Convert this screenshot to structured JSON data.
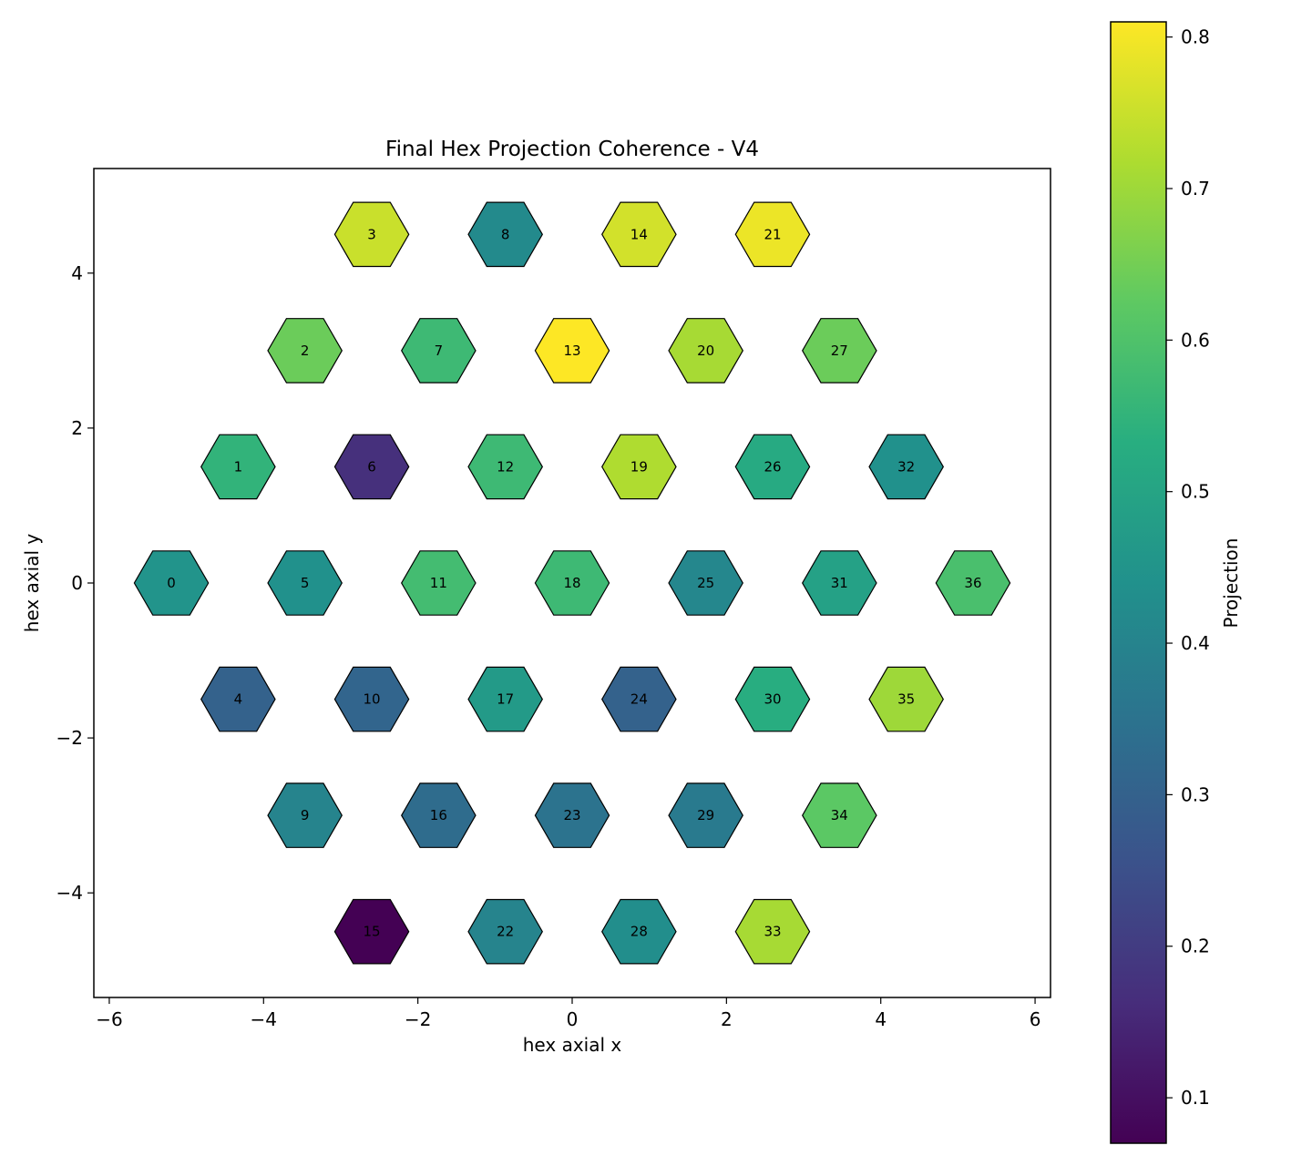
{
  "chart_data": {
    "type": "hexbin",
    "title": "Final Hex Projection Coherence - V4",
    "xlabel": "hex axial x",
    "ylabel": "hex axial y",
    "xlim": [
      -6.2,
      6.2
    ],
    "ylim": [
      -5.35,
      5.35
    ],
    "xticks": [
      -6,
      -4,
      -2,
      0,
      2,
      4,
      6
    ],
    "yticks": [
      -4,
      -2,
      0,
      2,
      4
    ],
    "colorbar": {
      "label": "Projection",
      "colormap": "viridis",
      "range": [
        0.07,
        0.81
      ],
      "ticks": [
        0.1,
        0.2,
        0.3,
        0.4,
        0.5,
        0.6,
        0.7,
        0.8
      ]
    },
    "cells": [
      {
        "id": 0,
        "x": -5.196,
        "y": 0.0,
        "value": 0.45
      },
      {
        "id": 1,
        "x": -4.33,
        "y": 1.5,
        "value": 0.55
      },
      {
        "id": 2,
        "x": -3.464,
        "y": 3.0,
        "value": 0.64
      },
      {
        "id": 3,
        "x": -2.598,
        "y": 4.5,
        "value": 0.75
      },
      {
        "id": 4,
        "x": -4.33,
        "y": -1.5,
        "value": 0.3
      },
      {
        "id": 5,
        "x": -3.464,
        "y": 0.0,
        "value": 0.44
      },
      {
        "id": 6,
        "x": -2.598,
        "y": 1.5,
        "value": 0.17
      },
      {
        "id": 7,
        "x": -1.732,
        "y": 3.0,
        "value": 0.57
      },
      {
        "id": 8,
        "x": -0.866,
        "y": 4.5,
        "value": 0.42
      },
      {
        "id": 9,
        "x": -3.464,
        "y": -3.0,
        "value": 0.4
      },
      {
        "id": 10,
        "x": -2.598,
        "y": -1.5,
        "value": 0.31
      },
      {
        "id": 11,
        "x": -1.732,
        "y": 0.0,
        "value": 0.58
      },
      {
        "id": 12,
        "x": -0.866,
        "y": 1.5,
        "value": 0.57
      },
      {
        "id": 13,
        "x": 0.0,
        "y": 3.0,
        "value": 0.81
      },
      {
        "id": 14,
        "x": 0.866,
        "y": 4.5,
        "value": 0.76
      },
      {
        "id": 15,
        "x": -2.598,
        "y": -4.5,
        "value": 0.07
      },
      {
        "id": 16,
        "x": -1.732,
        "y": -3.0,
        "value": 0.33
      },
      {
        "id": 17,
        "x": -0.866,
        "y": -1.5,
        "value": 0.47
      },
      {
        "id": 18,
        "x": 0.0,
        "y": 0.0,
        "value": 0.57
      },
      {
        "id": 19,
        "x": 0.866,
        "y": 1.5,
        "value": 0.72
      },
      {
        "id": 20,
        "x": 1.732,
        "y": 3.0,
        "value": 0.71
      },
      {
        "id": 21,
        "x": 2.598,
        "y": 4.5,
        "value": 0.79
      },
      {
        "id": 22,
        "x": -0.866,
        "y": -4.5,
        "value": 0.4
      },
      {
        "id": 23,
        "x": 0.0,
        "y": -3.0,
        "value": 0.35
      },
      {
        "id": 24,
        "x": 0.866,
        "y": -1.5,
        "value": 0.3
      },
      {
        "id": 25,
        "x": 1.732,
        "y": 0.0,
        "value": 0.41
      },
      {
        "id": 26,
        "x": 2.598,
        "y": 1.5,
        "value": 0.52
      },
      {
        "id": 27,
        "x": 3.464,
        "y": 3.0,
        "value": 0.64
      },
      {
        "id": 28,
        "x": 0.866,
        "y": -4.5,
        "value": 0.43
      },
      {
        "id": 29,
        "x": 1.732,
        "y": -3.0,
        "value": 0.37
      },
      {
        "id": 30,
        "x": 2.598,
        "y": -1.5,
        "value": 0.53
      },
      {
        "id": 31,
        "x": 3.464,
        "y": 0.0,
        "value": 0.49
      },
      {
        "id": 32,
        "x": 4.33,
        "y": 1.5,
        "value": 0.44
      },
      {
        "id": 33,
        "x": 2.598,
        "y": -4.5,
        "value": 0.71
      },
      {
        "id": 34,
        "x": 3.464,
        "y": -3.0,
        "value": 0.62
      },
      {
        "id": 35,
        "x": 4.33,
        "y": -1.5,
        "value": 0.7
      },
      {
        "id": 36,
        "x": 5.196,
        "y": 0.0,
        "value": 0.59
      }
    ]
  }
}
